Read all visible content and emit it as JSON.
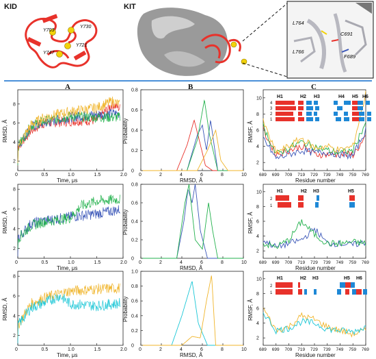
{
  "top": {
    "kid_label": "KID",
    "kit_label": "KIT",
    "kid_residues": [
      "Y703",
      "Y730",
      "Y721",
      "Y747"
    ],
    "inset_residues": [
      "L764",
      "C691",
      "L766",
      "F689"
    ]
  },
  "columns": {
    "a": "A",
    "b": "B",
    "c": "C"
  },
  "axes": {
    "time_label": "Time, μs",
    "rmsd_y_label": "RMSD, Å",
    "prob_y_label": "Probability",
    "rmsd_x_label": "RMSD, Å",
    "rmsf_y_label": "RMSF, Å",
    "residue_x_label": "Residue  number",
    "time_ticks": [
      "0",
      "0.5",
      "1.0",
      "1.5",
      "2.0"
    ],
    "rmsd_ticks": [
      "2",
      "4",
      "6",
      "8"
    ],
    "rmsd_x_ticks": [
      "0",
      "2",
      "4",
      "6",
      "8",
      "10"
    ],
    "rmsf_ticks": [
      "2",
      "4",
      "6",
      "8",
      "10"
    ],
    "residue_ticks": [
      "689",
      "699",
      "709",
      "719",
      "729",
      "739",
      "749",
      "759",
      "769"
    ],
    "prob_ticks_row1": [
      "0",
      "0.2",
      "0.4",
      "0.6",
      "0.8"
    ],
    "prob_ticks_row2": [
      "0",
      "0.2",
      "0.4",
      "0.6",
      "0.8"
    ],
    "prob_ticks_row3": [
      "0",
      "0.2",
      "0.4",
      "0.6",
      "0.8",
      "1.0"
    ]
  },
  "colors": {
    "red": "#e8322b",
    "blue": "#3a56b8",
    "green": "#22b14c",
    "orange": "#f0b429",
    "cyan": "#19c6d6",
    "helix": "#e8322b",
    "strand": "#1e88d6"
  },
  "chart_data": [
    {
      "type": "line",
      "panel": "A1",
      "xlabel": "Time, μs",
      "ylabel": "RMSD, Å",
      "xlim": [
        0,
        2.0
      ],
      "ylim": [
        1,
        9.5
      ],
      "series": [
        {
          "color": "red",
          "x": [
            0,
            0.25,
            0.5,
            1.0,
            1.5,
            1.8,
            1.95
          ],
          "values": [
            3.5,
            5.2,
            6.0,
            6.2,
            6.3,
            8.0,
            7.5
          ]
        },
        {
          "color": "blue",
          "x": [
            0,
            0.25,
            0.5,
            1.0,
            1.5,
            1.95
          ],
          "values": [
            3.5,
            5.6,
            6.0,
            6.6,
            6.9,
            7.0
          ]
        },
        {
          "color": "green",
          "x": [
            0,
            0.25,
            0.5,
            1.0,
            1.5,
            1.95
          ],
          "values": [
            3.5,
            5.7,
            6.2,
            6.7,
            6.6,
            6.6
          ]
        },
        {
          "color": "orange",
          "x": [
            0,
            0.25,
            0.5,
            1.0,
            1.5,
            1.8,
            1.95
          ],
          "values": [
            3.5,
            5.8,
            6.6,
            7.2,
            7.6,
            8.3,
            7.9
          ]
        }
      ]
    },
    {
      "type": "line",
      "panel": "A2",
      "xlabel": "Time, μs",
      "ylabel": "RMSD, Å",
      "xlim": [
        0,
        2.0
      ],
      "ylim": [
        1,
        8.5
      ],
      "series": [
        {
          "color": "blue",
          "x": [
            0,
            0.25,
            0.5,
            1.0,
            1.5,
            2.0
          ],
          "values": [
            3.0,
            4.5,
            4.8,
            5.2,
            5.5,
            6.0
          ]
        },
        {
          "color": "green",
          "x": [
            0,
            0.25,
            0.5,
            1.0,
            1.2,
            1.5,
            2.0
          ],
          "values": [
            3.0,
            4.3,
            4.7,
            5.1,
            6.3,
            6.8,
            7.0
          ]
        }
      ]
    },
    {
      "type": "line",
      "panel": "A3",
      "xlabel": "Time, μs",
      "ylabel": "RMSD, Å",
      "xlim": [
        0,
        2.0
      ],
      "ylim": [
        1,
        8.5
      ],
      "series": [
        {
          "color": "orange",
          "x": [
            0,
            0.25,
            0.5,
            1.0,
            1.5,
            2.0
          ],
          "values": [
            3.0,
            5.2,
            5.8,
            6.5,
            6.7,
            6.8
          ]
        },
        {
          "color": "cyan",
          "x": [
            0,
            0.25,
            0.5,
            0.8,
            1.0,
            1.5,
            2.0
          ],
          "values": [
            3.0,
            4.8,
            5.3,
            6.0,
            5.2,
            5.0,
            5.3
          ]
        }
      ]
    },
    {
      "type": "line",
      "panel": "B1",
      "xlabel": "RMSD, Å",
      "ylabel": "Probability",
      "xlim": [
        0,
        10
      ],
      "ylim": [
        0,
        0.8
      ],
      "series": [
        {
          "color": "red",
          "x": [
            3.5,
            4.5,
            5.2,
            5.7,
            6.3,
            7.0
          ],
          "values": [
            0,
            0.25,
            0.5,
            0.3,
            0.05,
            0
          ]
        },
        {
          "color": "blue",
          "x": [
            4.5,
            5.5,
            6.0,
            6.4,
            6.8,
            7.5
          ],
          "values": [
            0,
            0.35,
            0.45,
            0.2,
            0.5,
            0
          ]
        },
        {
          "color": "green",
          "x": [
            4.5,
            5.5,
            6.2,
            6.7,
            7.5
          ],
          "values": [
            0,
            0.3,
            0.7,
            0.35,
            0
          ]
        },
        {
          "color": "orange",
          "x": [
            5.5,
            6.5,
            7.3,
            7.8,
            8.5
          ],
          "values": [
            0,
            0.2,
            0.4,
            0.1,
            0
          ]
        }
      ]
    },
    {
      "type": "line",
      "panel": "B2",
      "xlabel": "RMSD, Å",
      "ylabel": "Probability",
      "xlim": [
        0,
        10
      ],
      "ylim": [
        0,
        0.8
      ],
      "series": [
        {
          "color": "blue",
          "x": [
            3.5,
            4.2,
            4.6,
            5.0,
            5.3,
            5.8,
            6.5
          ],
          "values": [
            0,
            0.4,
            0.75,
            0.6,
            0.8,
            0.3,
            0
          ]
        },
        {
          "color": "green",
          "x": [
            3.5,
            4.3,
            4.7,
            5.3,
            6.0,
            6.6,
            7.0,
            7.5
          ],
          "values": [
            0,
            0.6,
            0.8,
            0.2,
            0.1,
            0.6,
            0.3,
            0
          ]
        }
      ]
    },
    {
      "type": "line",
      "panel": "B3",
      "xlabel": "RMSD, Å",
      "ylabel": "Probability",
      "xlim": [
        0,
        10
      ],
      "ylim": [
        0,
        1.0
      ],
      "series": [
        {
          "color": "cyan",
          "x": [
            3.0,
            4.0,
            5.0,
            5.6,
            6.5
          ],
          "values": [
            0,
            0.4,
            0.87,
            0.3,
            0
          ]
        },
        {
          "color": "orange",
          "x": [
            4.0,
            5.0,
            5.8,
            6.4,
            6.9,
            7.3
          ],
          "values": [
            0,
            0.12,
            0.1,
            0.6,
            0.95,
            0
          ]
        }
      ]
    },
    {
      "type": "line",
      "panel": "C1",
      "xlabel": "Residue  number",
      "ylabel": "RMSF, Å",
      "xlim": [
        689,
        769
      ],
      "ylim": [
        1,
        11
      ],
      "series": [
        {
          "color": "red",
          "x": [
            689,
            699,
            709,
            719,
            729,
            739,
            749,
            759,
            769
          ],
          "values": [
            6,
            3,
            3.5,
            4,
            3,
            3,
            3,
            3,
            5
          ]
        },
        {
          "color": "blue",
          "x": [
            689,
            699,
            709,
            719,
            729,
            739,
            749,
            759,
            769
          ],
          "values": [
            5,
            2.5,
            3,
            3.5,
            3.2,
            3.3,
            3,
            2.8,
            6
          ]
        },
        {
          "color": "green",
          "x": [
            689,
            699,
            709,
            719,
            729,
            739,
            749,
            759,
            769
          ],
          "values": [
            6.5,
            3,
            3.8,
            4.5,
            4,
            3.5,
            3.2,
            3.5,
            7
          ]
        },
        {
          "color": "orange",
          "x": [
            689,
            699,
            709,
            719,
            729,
            739,
            749,
            759,
            769
          ],
          "values": [
            7,
            3.2,
            4,
            5,
            3.8,
            4,
            3.5,
            4,
            10.5
          ]
        }
      ]
    },
    {
      "type": "line",
      "panel": "C2",
      "xlabel": "Residue  number",
      "ylabel": "RMSF, Å",
      "xlim": [
        689,
        769
      ],
      "ylim": [
        1,
        11
      ],
      "series": [
        {
          "color": "blue",
          "x": [
            689,
            699,
            709,
            719,
            729,
            739,
            749,
            759,
            769
          ],
          "values": [
            3.5,
            2.5,
            3,
            3.5,
            5,
            3,
            3,
            2.8,
            3.2
          ]
        },
        {
          "color": "green",
          "x": [
            689,
            699,
            709,
            719,
            729,
            739,
            749,
            759,
            769
          ],
          "values": [
            3,
            2.5,
            3.5,
            6,
            4.2,
            3,
            3,
            3.2,
            3
          ]
        }
      ]
    },
    {
      "type": "line",
      "panel": "C3",
      "xlabel": "Residue  number",
      "ylabel": "RMSF, Å",
      "xlim": [
        689,
        769
      ],
      "ylim": [
        1,
        11
      ],
      "series": [
        {
          "color": "orange",
          "x": [
            689,
            699,
            709,
            719,
            729,
            739,
            749,
            759,
            769
          ],
          "values": [
            6,
            3,
            3.5,
            5,
            4.5,
            3.5,
            3,
            2.5,
            3
          ]
        },
        {
          "color": "cyan",
          "x": [
            689,
            699,
            709,
            719,
            729,
            739,
            749,
            759,
            769
          ],
          "values": [
            5.5,
            3,
            3.3,
            4.2,
            4,
            3.2,
            3,
            2.8,
            3.5
          ]
        }
      ]
    }
  ],
  "legend_c1": {
    "headers": [
      "H1",
      "H2",
      "H3",
      "H4",
      "H5",
      "H6"
    ],
    "rows": [
      "4",
      "3",
      "2",
      "1"
    ]
  },
  "legend_c2": {
    "headers": [
      "H1",
      "H2",
      "H3",
      "H5"
    ],
    "rows": [
      "2",
      "1"
    ]
  },
  "legend_c3": {
    "headers": [
      "H1",
      "H2",
      "H3",
      "H5",
      "H6"
    ],
    "rows": [
      "2",
      "1"
    ]
  }
}
